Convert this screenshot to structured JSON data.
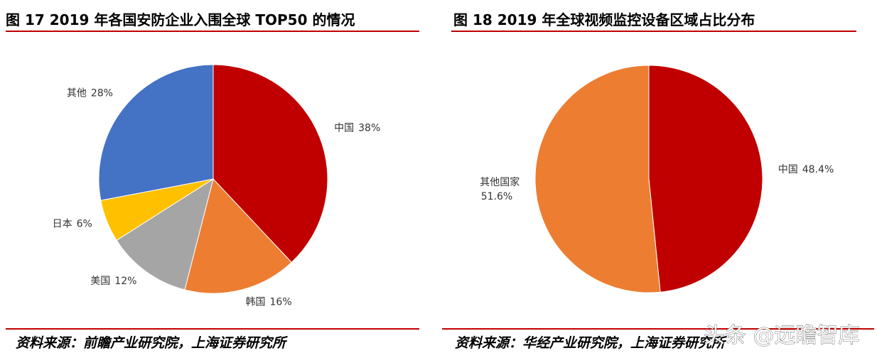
{
  "chart_data": [
    {
      "type": "pie",
      "title": "图 17 2019 年各国安防企业入围全球 TOP50 的情况",
      "categories": [
        "中国",
        "韩国",
        "美国",
        "日本",
        "其他"
      ],
      "values": [
        38,
        16,
        12,
        6,
        28
      ],
      "value_labels": [
        "38%",
        "16%",
        "12%",
        "6%",
        "28%"
      ],
      "colors": [
        "#C00000",
        "#ED7D31",
        "#A5A5A5",
        "#FFC000",
        "#4472C4"
      ],
      "source": "资料来源：前瞻产业研究院，上海证券研究所"
    },
    {
      "type": "pie",
      "title": "图 18 2019 年全球视频监控设备区域占比分布",
      "categories": [
        "中国",
        "其他国家"
      ],
      "values": [
        48.4,
        51.6
      ],
      "value_labels": [
        "48.4%",
        "51.6%"
      ],
      "colors": [
        "#C00000",
        "#ED7D31"
      ],
      "source": "资料来源：华经产业研究院，上海证券研究所"
    }
  ],
  "watermark": "头条 @远瞻智库"
}
